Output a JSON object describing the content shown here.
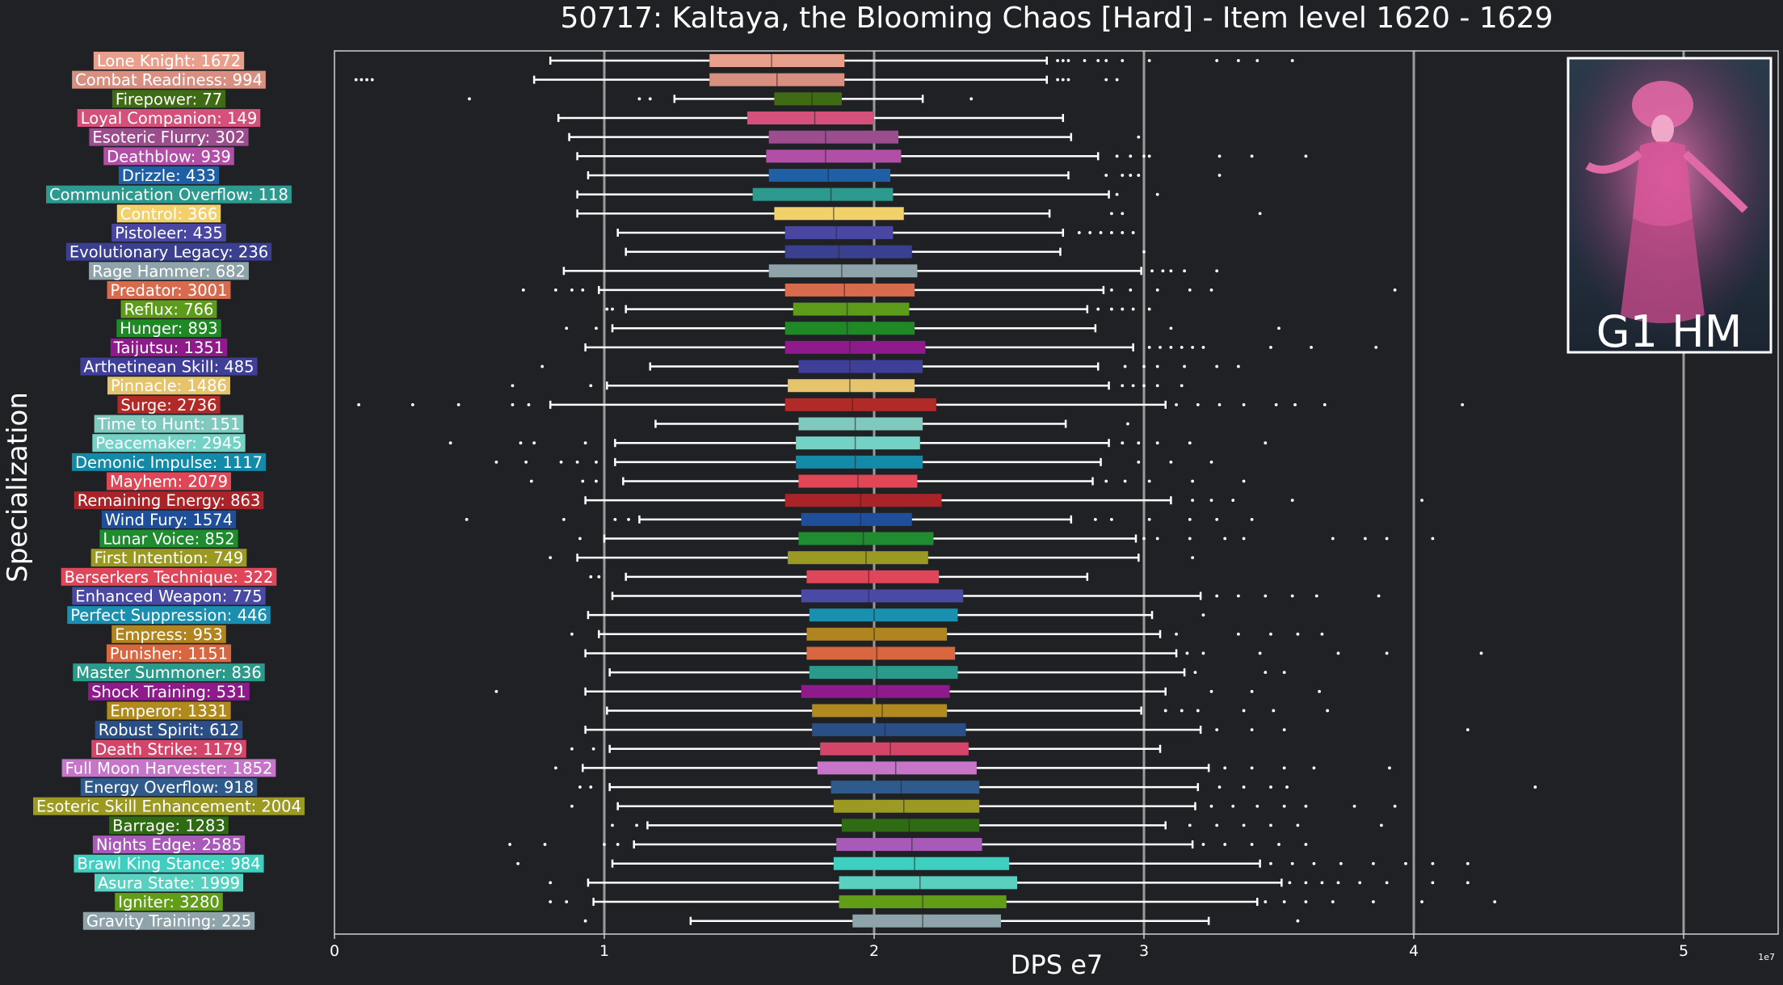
{
  "chart_data": {
    "type": "boxplot",
    "title": "50717: Kaltaya, the Blooming Chaos [Hard] - Item level 1620 - 1629",
    "xlabel": "DPS e7",
    "ylabel": "Specialization",
    "x_exponent_label": "1e7",
    "xlim": [
      0,
      5.35
    ],
    "x_ticks": [
      0,
      1,
      2,
      3,
      4,
      5
    ],
    "x_tick_labels": [
      "0",
      "1",
      "2",
      "3",
      "4",
      "5"
    ],
    "vertical_reference_lines": [
      1,
      2,
      3,
      4,
      5
    ],
    "legend": "none",
    "inset_image": {
      "label": "G1 HM",
      "icon": "boss-portrait-icon",
      "placement": "top-right"
    },
    "colors": {
      "background": "#1f2124",
      "axis_frame": "#cfcfcf",
      "whisker": "#ffffff",
      "reference_line": "#9a9a9a"
    },
    "categories": [
      {
        "label": "Lone Knight: 1672",
        "color": "#e8a08d",
        "whislo": 0.8,
        "q1": 1.39,
        "median": 1.62,
        "q3": 1.89,
        "whishi": 2.64,
        "fliers": [
          2.68,
          2.7,
          2.72,
          2.78,
          2.83,
          2.86,
          2.92,
          3.02,
          3.27,
          3.35,
          3.42,
          3.55
        ]
      },
      {
        "label": "Combat Readiness: 994",
        "color": "#d98f7f",
        "whislo": 0.74,
        "q1": 1.39,
        "median": 1.64,
        "q3": 1.89,
        "whishi": 2.64,
        "fliers": [
          0.08,
          0.1,
          0.12,
          0.14,
          2.68,
          2.7,
          2.72,
          2.86,
          2.9
        ]
      },
      {
        "label": "Firepower: 77",
        "color": "#3f6b14",
        "whislo": 1.26,
        "q1": 1.63,
        "median": 1.77,
        "q3": 1.88,
        "whishi": 2.18,
        "fliers": [
          0.5,
          1.13,
          1.17,
          2.36
        ]
      },
      {
        "label": "Loyal Companion: 149",
        "color": "#d5507a",
        "whislo": 0.83,
        "q1": 1.53,
        "median": 1.78,
        "q3": 2.0,
        "whishi": 2.7,
        "fliers": []
      },
      {
        "label": "Esoteric Flurry: 302",
        "color": "#9c4d8d",
        "whislo": 0.87,
        "q1": 1.61,
        "median": 1.82,
        "q3": 2.09,
        "whishi": 2.73,
        "fliers": [
          2.98
        ]
      },
      {
        "label": "Deathblow: 939",
        "color": "#b14ea6",
        "whislo": 0.9,
        "q1": 1.6,
        "median": 1.82,
        "q3": 2.1,
        "whishi": 2.83,
        "fliers": [
          2.9,
          2.95,
          3.0,
          3.02,
          3.28,
          3.4,
          3.6
        ]
      },
      {
        "label": "Drizzle: 433",
        "color": "#1f5fa6",
        "whislo": 0.94,
        "q1": 1.61,
        "median": 1.83,
        "q3": 2.06,
        "whishi": 2.72,
        "fliers": [
          2.86,
          2.92,
          2.95,
          2.98,
          3.28
        ]
      },
      {
        "label": "Communication Overflow: 118",
        "color": "#2c9a8e",
        "whislo": 0.9,
        "q1": 1.55,
        "median": 1.84,
        "q3": 2.07,
        "whishi": 2.87,
        "fliers": [
          2.9,
          3.05
        ]
      },
      {
        "label": "Control: 366",
        "color": "#f2d06a",
        "whislo": 0.9,
        "q1": 1.63,
        "median": 1.85,
        "q3": 2.11,
        "whishi": 2.65,
        "fliers": [
          2.88,
          2.92,
          3.43
        ]
      },
      {
        "label": "Pistoleer: 435",
        "color": "#4a47a3",
        "whislo": 1.05,
        "q1": 1.67,
        "median": 1.86,
        "q3": 2.07,
        "whishi": 2.7,
        "fliers": [
          2.76,
          2.8,
          2.84,
          2.88,
          2.92,
          2.96
        ]
      },
      {
        "label": "Evolutionary Legacy: 236",
        "color": "#3a3f8f",
        "whislo": 1.08,
        "q1": 1.67,
        "median": 1.87,
        "q3": 2.14,
        "whishi": 2.69,
        "fliers": [
          3.0
        ]
      },
      {
        "label": "Rage Hammer: 682",
        "color": "#8fa3aa",
        "whislo": 0.85,
        "q1": 1.61,
        "median": 1.88,
        "q3": 2.16,
        "whishi": 2.99,
        "fliers": [
          3.03,
          3.07,
          3.1,
          3.15,
          3.27
        ]
      },
      {
        "label": "Predator: 3001",
        "color": "#d86a4d",
        "whislo": 0.98,
        "q1": 1.67,
        "median": 1.89,
        "q3": 2.15,
        "whishi": 2.85,
        "fliers": [
          0.7,
          0.82,
          0.88,
          0.92,
          2.88,
          2.95,
          3.05,
          3.17,
          3.25,
          3.93
        ]
      },
      {
        "label": "Reflux: 766",
        "color": "#5c9c1a",
        "whislo": 1.08,
        "q1": 1.7,
        "median": 1.9,
        "q3": 2.13,
        "whishi": 2.79,
        "fliers": [
          1.01,
          1.03,
          2.83,
          2.88,
          2.92,
          2.96,
          3.02
        ]
      },
      {
        "label": "Hunger: 893",
        "color": "#1f8a25",
        "whislo": 1.03,
        "q1": 1.67,
        "median": 1.9,
        "q3": 2.15,
        "whishi": 2.82,
        "fliers": [
          0.86,
          0.97,
          3.1,
          3.5
        ]
      },
      {
        "label": "Taijutsu: 1351",
        "color": "#8e1a8c",
        "whislo": 0.93,
        "q1": 1.67,
        "median": 1.91,
        "q3": 2.19,
        "whishi": 2.96,
        "fliers": [
          3.02,
          3.06,
          3.1,
          3.14,
          3.18,
          3.22,
          3.47,
          3.62,
          3.86
        ]
      },
      {
        "label": "Arthetinean Skill: 485",
        "color": "#3f3f9a",
        "whislo": 1.17,
        "q1": 1.72,
        "median": 1.91,
        "q3": 2.18,
        "whishi": 2.83,
        "fliers": [
          0.77,
          2.93,
          3.0,
          3.05,
          3.15,
          3.27,
          3.35
        ]
      },
      {
        "label": "Pinnacle: 1486",
        "color": "#e5c46b",
        "whislo": 1.01,
        "q1": 1.68,
        "median": 1.91,
        "q3": 2.15,
        "whishi": 2.87,
        "fliers": [
          0.66,
          0.95,
          2.92,
          2.96,
          3.0,
          3.05,
          3.14
        ]
      },
      {
        "label": "Surge: 2736",
        "color": "#b02a28",
        "whislo": 0.8,
        "q1": 1.67,
        "median": 1.92,
        "q3": 2.23,
        "whishi": 3.08,
        "fliers": [
          0.09,
          0.29,
          0.46,
          0.66,
          0.72,
          3.12,
          3.2,
          3.28,
          3.37,
          3.49,
          3.56,
          3.67,
          4.18
        ]
      },
      {
        "label": "Time to Hunt: 151",
        "color": "#7fc9bd",
        "whislo": 1.19,
        "q1": 1.72,
        "median": 1.93,
        "q3": 2.18,
        "whishi": 2.71,
        "fliers": [
          2.94
        ]
      },
      {
        "label": "Peacemaker: 2945",
        "color": "#74d1c6",
        "whislo": 1.04,
        "q1": 1.71,
        "median": 1.93,
        "q3": 2.17,
        "whishi": 2.87,
        "fliers": [
          0.43,
          0.69,
          0.74,
          0.93,
          2.92,
          2.98,
          3.05,
          3.17,
          3.45
        ]
      },
      {
        "label": "Demonic Impulse: 1117",
        "color": "#128aa8",
        "whislo": 1.04,
        "q1": 1.71,
        "median": 1.93,
        "q3": 2.18,
        "whishi": 2.84,
        "fliers": [
          0.6,
          0.71,
          0.84,
          0.9,
          0.97,
          2.98,
          3.1,
          3.25
        ]
      },
      {
        "label": "Mayhem: 2079",
        "color": "#e04655",
        "whislo": 1.07,
        "q1": 1.72,
        "median": 1.94,
        "q3": 2.16,
        "whishi": 2.81,
        "fliers": [
          0.73,
          0.92,
          0.97,
          2.86,
          2.93,
          3.02,
          3.18,
          3.37
        ]
      },
      {
        "label": "Remaining Energy: 863",
        "color": "#a82428",
        "whislo": 0.93,
        "q1": 1.67,
        "median": 1.95,
        "q3": 2.25,
        "whishi": 3.1,
        "fliers": [
          3.18,
          3.25,
          3.33,
          3.55,
          4.03
        ]
      },
      {
        "label": "Wind Fury: 1574",
        "color": "#1f4f9a",
        "whislo": 1.13,
        "q1": 1.73,
        "median": 1.95,
        "q3": 2.14,
        "whishi": 2.73,
        "fliers": [
          0.49,
          0.85,
          1.04,
          1.09,
          2.82,
          2.88,
          3.02,
          3.17,
          3.27,
          3.4
        ]
      },
      {
        "label": "Lunar Voice: 852",
        "color": "#1f8c30",
        "whislo": 1.0,
        "q1": 1.72,
        "median": 1.96,
        "q3": 2.22,
        "whishi": 2.97,
        "fliers": [
          0.91,
          3.0,
          3.05,
          3.17,
          3.3,
          3.37,
          3.7,
          3.82,
          3.9,
          4.07
        ]
      },
      {
        "label": "First Intention: 749",
        "color": "#9a9a22",
        "whislo": 0.9,
        "q1": 1.68,
        "median": 1.97,
        "q3": 2.2,
        "whishi": 2.98,
        "fliers": [
          0.8,
          3.18
        ]
      },
      {
        "label": "Berserkers Technique: 322",
        "color": "#e04659",
        "whislo": 1.08,
        "q1": 1.75,
        "median": 1.98,
        "q3": 2.24,
        "whishi": 2.79,
        "fliers": [
          0.95,
          0.98
        ]
      },
      {
        "label": "Enhanced Weapon: 775",
        "color": "#4a4aa5",
        "whislo": 1.03,
        "q1": 1.73,
        "median": 1.98,
        "q3": 2.33,
        "whishi": 3.21,
        "fliers": [
          3.27,
          3.35,
          3.45,
          3.55,
          3.64,
          3.87
        ]
      },
      {
        "label": "Perfect Suppression: 446",
        "color": "#1a8fb0",
        "whislo": 0.94,
        "q1": 1.76,
        "median": 2.0,
        "q3": 2.31,
        "whishi": 3.03,
        "fliers": [
          3.22
        ]
      },
      {
        "label": "Empress: 953",
        "color": "#b0841f",
        "whislo": 0.98,
        "q1": 1.75,
        "median": 2.0,
        "q3": 2.27,
        "whishi": 3.06,
        "fliers": [
          0.88,
          3.12,
          3.35,
          3.47,
          3.57,
          3.66
        ]
      },
      {
        "label": "Punisher: 1151",
        "color": "#d8673f",
        "whislo": 0.93,
        "q1": 1.75,
        "median": 2.01,
        "q3": 2.3,
        "whishi": 3.12,
        "fliers": [
          3.16,
          3.22,
          3.43,
          3.72,
          3.9,
          4.25
        ]
      },
      {
        "label": "Master Summoner: 836",
        "color": "#2c9a8a",
        "whislo": 1.02,
        "q1": 1.76,
        "median": 2.01,
        "q3": 2.31,
        "whishi": 3.15,
        "fliers": [
          3.19,
          3.45,
          3.52
        ]
      },
      {
        "label": "Shock Training: 531",
        "color": "#8e1a8c",
        "whislo": 0.93,
        "q1": 1.73,
        "median": 2.01,
        "q3": 2.28,
        "whishi": 3.08,
        "fliers": [
          0.6,
          3.25,
          3.4,
          3.65
        ]
      },
      {
        "label": "Emperor: 1331",
        "color": "#b08a1f",
        "whislo": 1.01,
        "q1": 1.77,
        "median": 2.03,
        "q3": 2.27,
        "whishi": 2.99,
        "fliers": [
          3.08,
          3.14,
          3.2,
          3.37,
          3.48,
          3.68
        ]
      },
      {
        "label": "Robust Spirit: 612",
        "color": "#2a4f86",
        "whislo": 0.93,
        "q1": 1.77,
        "median": 2.04,
        "q3": 2.34,
        "whishi": 3.21,
        "fliers": [
          3.27,
          3.4,
          3.52,
          4.2
        ]
      },
      {
        "label": "Death Strike: 1179",
        "color": "#d5456a",
        "whislo": 1.02,
        "q1": 1.8,
        "median": 2.06,
        "q3": 2.35,
        "whishi": 3.06,
        "fliers": [
          0.88,
          0.96
        ]
      },
      {
        "label": "Full Moon Harvester: 1852",
        "color": "#c675c8",
        "whislo": 0.92,
        "q1": 1.79,
        "median": 2.08,
        "q3": 2.38,
        "whishi": 3.24,
        "fliers": [
          0.82,
          3.3,
          3.4,
          3.52,
          3.63,
          3.91
        ]
      },
      {
        "label": "Energy Overflow: 918",
        "color": "#2f5a8c",
        "whislo": 1.02,
        "q1": 1.84,
        "median": 2.1,
        "q3": 2.39,
        "whishi": 3.2,
        "fliers": [
          0.91,
          0.95,
          3.28,
          3.37,
          3.47,
          3.53,
          4.45
        ]
      },
      {
        "label": "Esoteric Skill Enhancement: 2004",
        "color": "#9c9a23",
        "whislo": 1.05,
        "q1": 1.85,
        "median": 2.11,
        "q3": 2.39,
        "whishi": 3.19,
        "fliers": [
          0.88,
          3.25,
          3.33,
          3.42,
          3.52,
          3.6,
          3.78,
          3.93
        ]
      },
      {
        "label": "Barrage: 1283",
        "color": "#2f6b12",
        "whislo": 1.16,
        "q1": 1.88,
        "median": 2.13,
        "q3": 2.39,
        "whishi": 3.08,
        "fliers": [
          1.03,
          1.12,
          3.17,
          3.27,
          3.37,
          3.47,
          3.57,
          3.88
        ]
      },
      {
        "label": "Nights Edge: 2585",
        "color": "#a85ab8",
        "whislo": 1.11,
        "q1": 1.86,
        "median": 2.14,
        "q3": 2.4,
        "whishi": 3.18,
        "fliers": [
          0.65,
          0.78,
          1.0,
          1.05,
          3.22,
          3.3,
          3.4,
          3.5,
          3.6
        ]
      },
      {
        "label": "Brawl King Stance: 984",
        "color": "#3fcfc0",
        "whislo": 1.03,
        "q1": 1.85,
        "median": 2.15,
        "q3": 2.5,
        "whishi": 3.43,
        "fliers": [
          0.68,
          3.47,
          3.55,
          3.63,
          3.73,
          3.85,
          3.97,
          4.07,
          4.2
        ]
      },
      {
        "label": "Asura State: 1999",
        "color": "#5ad1c0",
        "whislo": 0.94,
        "q1": 1.87,
        "median": 2.17,
        "q3": 2.53,
        "whishi": 3.51,
        "fliers": [
          0.8,
          3.54,
          3.6,
          3.66,
          3.72,
          3.8,
          3.9,
          4.07,
          4.2
        ]
      },
      {
        "label": "Igniter: 3280",
        "color": "#5f9e16",
        "whislo": 0.96,
        "q1": 1.87,
        "median": 2.18,
        "q3": 2.49,
        "whishi": 3.42,
        "fliers": [
          0.8,
          0.86,
          3.45,
          3.52,
          3.6,
          3.7,
          3.85,
          4.03,
          4.3
        ]
      },
      {
        "label": "Gravity Training: 225",
        "color": "#8fa3aa",
        "whislo": 1.32,
        "q1": 1.92,
        "median": 2.18,
        "q3": 2.47,
        "whishi": 3.24,
        "fliers": [
          0.93,
          3.57
        ]
      }
    ]
  }
}
